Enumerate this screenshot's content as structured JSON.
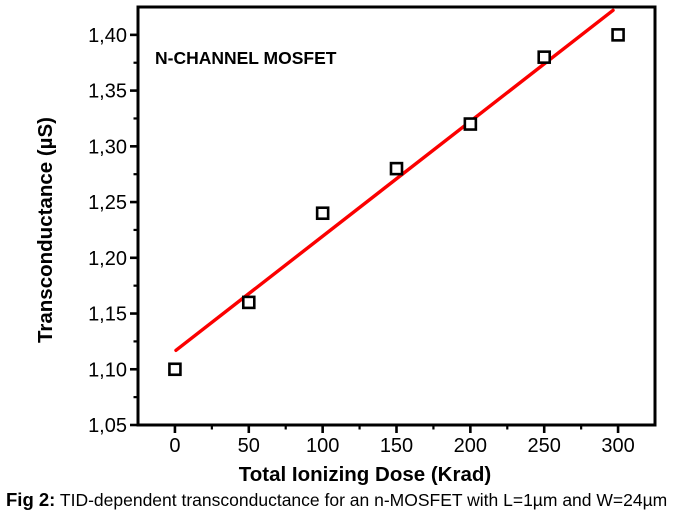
{
  "caption": {
    "label": "Fig 2:",
    "text": "TID-dependent transconductance for an n-MOSFET with L=1µm and W=24µm"
  },
  "chart_data": {
    "type": "scatter",
    "title": "",
    "xlabel": "Total Ionizing Dose (Krad)",
    "ylabel": "Transconductance (µS)",
    "annotation": {
      "text": "N-CHANNEL MOSFET",
      "color": "#008c00",
      "x": -13.5,
      "y": 1.374
    },
    "series": [
      {
        "name": "measured-points",
        "kind": "scatter",
        "marker": "open-square",
        "color": "#000000",
        "x": [
          0,
          50,
          100,
          150,
          200,
          250,
          300
        ],
        "y": [
          1.1,
          1.16,
          1.24,
          1.28,
          1.32,
          1.38,
          1.4
        ]
      },
      {
        "name": "linear-fit",
        "kind": "line",
        "color": "#fb0000",
        "x": [
          0.7,
          296.6
        ],
        "y": [
          1.117,
          1.422
        ]
      }
    ],
    "xticks": {
      "values": [
        0,
        50,
        100,
        150,
        200,
        250,
        300
      ],
      "labels": [
        "0",
        "50",
        "100",
        "150",
        "200",
        "250",
        "300"
      ],
      "minor": [
        25,
        75,
        125,
        175,
        225,
        275
      ]
    },
    "yticks": {
      "values": [
        1.05,
        1.1,
        1.15,
        1.2,
        1.25,
        1.3,
        1.35,
        1.4
      ],
      "labels": [
        "1,05",
        "1,10",
        "1,15",
        "1,20",
        "1,25",
        "1,30",
        "1,35",
        "1,40"
      ],
      "minor": [
        1.075,
        1.125,
        1.175,
        1.225,
        1.275,
        1.325,
        1.375
      ]
    },
    "xlim": [
      -25,
      325
    ],
    "ylim": [
      1.05,
      1.425
    ],
    "grid": false,
    "legend": null,
    "axis_color": "#000000",
    "background": "#ffffff"
  }
}
